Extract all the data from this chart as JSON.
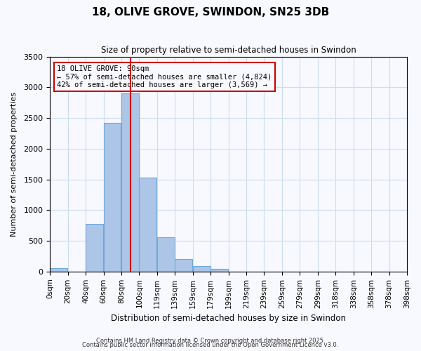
{
  "title": "18, OLIVE GROVE, SWINDON, SN25 3DB",
  "subtitle": "Size of property relative to semi-detached houses in Swindon",
  "bar_values": [
    50,
    0,
    780,
    2420,
    2900,
    1530,
    560,
    200,
    90,
    40,
    0,
    0,
    0,
    0,
    0,
    0,
    0,
    0,
    0
  ],
  "bar_labels": [
    "0sqm",
    "20sqm",
    "40sqm",
    "60sqm",
    "80sqm",
    "100sqm",
    "119sqm",
    "139sqm",
    "159sqm",
    "179sqm",
    "199sqm",
    "219sqm",
    "239sqm",
    "259sqm",
    "279sqm",
    "299sqm",
    "318sqm",
    "338sqm",
    "358sqm",
    "378sqm",
    "398sqm"
  ],
  "bar_color": "#adc6e8",
  "bar_edgecolor": "#6fa8d6",
  "xlabel": "Distribution of semi-detached houses by size in Swindon",
  "ylabel": "Number of semi-detached properties",
  "ylim": [
    0,
    3500
  ],
  "yticks": [
    0,
    500,
    1000,
    1500,
    2000,
    2500,
    3000,
    3500
  ],
  "property_line_x": 90,
  "property_line_color": "#cc0000",
  "annotation_title": "18 OLIVE GROVE: 90sqm",
  "annotation_line1": "← 57% of semi-detached houses are smaller (4,824)",
  "annotation_line2": "42% of semi-detached houses are larger (3,569) →",
  "annotation_box_color": "#cc0000",
  "footnote1": "Contains HM Land Registry data © Crown copyright and database right 2025.",
  "footnote2": "Contains public sector information licensed under the Open Government Licence v3.0.",
  "background_color": "#f8f8ff",
  "grid_color": "#ccddee"
}
